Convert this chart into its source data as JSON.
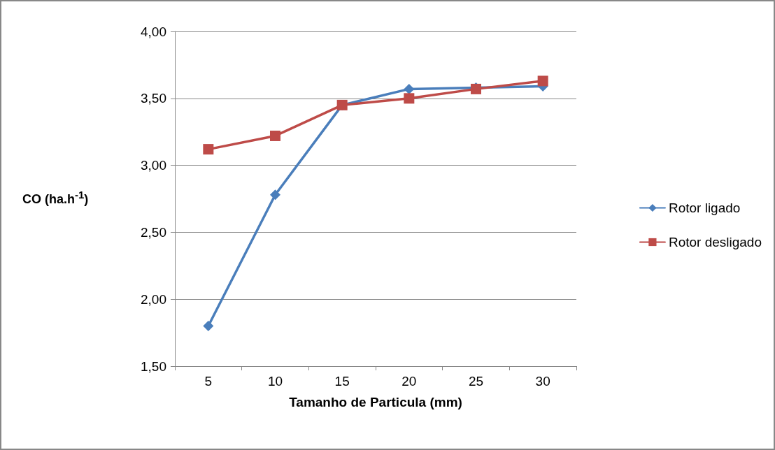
{
  "chart_data": {
    "type": "line",
    "xlabel": "Tamanho de Particula (mm)",
    "ylabel": "CO (ha.h$^{-1}$)",
    "categories": [
      "5",
      "10",
      "15",
      "20",
      "25",
      "30"
    ],
    "series": [
      {
        "name": "Rotor ligado",
        "color": "#4a7ebb",
        "marker": "diamond",
        "values": [
          1.8,
          2.78,
          3.45,
          3.57,
          3.58,
          3.59
        ]
      },
      {
        "name": "Rotor desligado",
        "color": "#be4b48",
        "marker": "square",
        "values": [
          3.12,
          3.22,
          3.45,
          3.5,
          3.57,
          3.63
        ]
      }
    ],
    "ylim": [
      1.5,
      4
    ],
    "yticks": [
      {
        "value": 1.5,
        "label": "1,50"
      },
      {
        "value": 2,
        "label": "2,00"
      },
      {
        "value": 2.5,
        "label": "2,50"
      },
      {
        "value": 3,
        "label": "3,00"
      },
      {
        "value": 3.5,
        "label": "3,50"
      },
      {
        "value": 4,
        "label": "4,00"
      }
    ],
    "grid": "y",
    "legend": "right",
    "line_style": "solid"
  }
}
